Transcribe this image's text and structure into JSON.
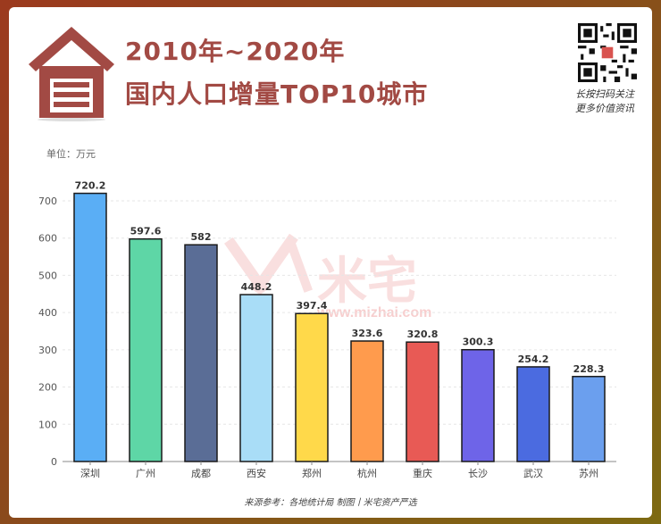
{
  "header": {
    "title_line1": "2010年~2020年",
    "title_line2": "国内人口增量TOP10城市",
    "qr_caption_line1": "长按扫码关注",
    "qr_caption_line2": "更多价值资讯"
  },
  "watermark": {
    "brand": "米宅",
    "url": "www.mizhai.com"
  },
  "footer": {
    "source": "来源参考：各地统计局 制图丨米宅资产严选"
  },
  "colors": {
    "title": "#a24a44",
    "house_icon": "#a24a44",
    "bars": [
      "#5aaef5",
      "#5ed6a6",
      "#5a6d96",
      "#a9ddf7",
      "#ffd94a",
      "#ff9b4d",
      "#e85a55",
      "#6e64e8",
      "#4b6be0",
      "#6b9fee"
    ]
  },
  "chart_data": {
    "type": "bar",
    "unit_label": "单位：万元",
    "categories": [
      "深圳",
      "广州",
      "成都",
      "西安",
      "郑州",
      "杭州",
      "重庆",
      "长沙",
      "武汉",
      "苏州"
    ],
    "values": [
      720.2,
      597.6,
      582,
      448.2,
      397.4,
      323.6,
      320.8,
      300.3,
      254.2,
      228.3
    ],
    "value_labels": [
      "720.2",
      "597.6",
      "582",
      "448.2",
      "397.4",
      "323.6",
      "320.8",
      "300.3",
      "254.2",
      "228.3"
    ],
    "y_ticks": [
      0,
      100,
      200,
      300,
      400,
      500,
      600,
      700
    ],
    "ylim": [
      0,
      700
    ],
    "grid": true,
    "legend": "none"
  }
}
